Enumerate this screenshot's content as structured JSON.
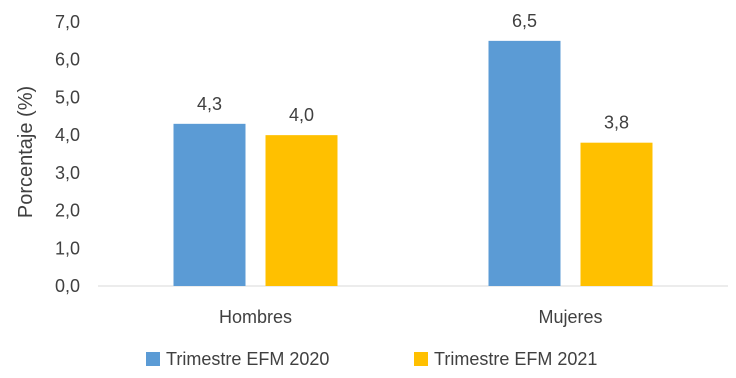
{
  "chart_data": {
    "type": "bar",
    "title": "",
    "xlabel": "",
    "ylabel": "Porcentaje (%)",
    "categories": [
      "Hombres",
      "Mujeres"
    ],
    "series": [
      {
        "name": "Trimestre EFM 2020",
        "values": [
          4.3,
          6.5
        ],
        "color": "#5B9BD5"
      },
      {
        "name": "Trimestre EFM 2021",
        "values": [
          4.0,
          3.8
        ],
        "color": "#FFC000"
      }
    ],
    "value_labels": [
      [
        "4,3",
        "6,5"
      ],
      [
        "4,0",
        "3,8"
      ]
    ],
    "ylim": [
      0,
      7
    ],
    "yticks": [
      0,
      1,
      2,
      3,
      4,
      5,
      6,
      7
    ],
    "ytick_labels": [
      "0,0",
      "1,0",
      "2,0",
      "3,0",
      "4,0",
      "5,0",
      "6,0",
      "7,0"
    ],
    "grid": false,
    "legend_position": "bottom"
  }
}
